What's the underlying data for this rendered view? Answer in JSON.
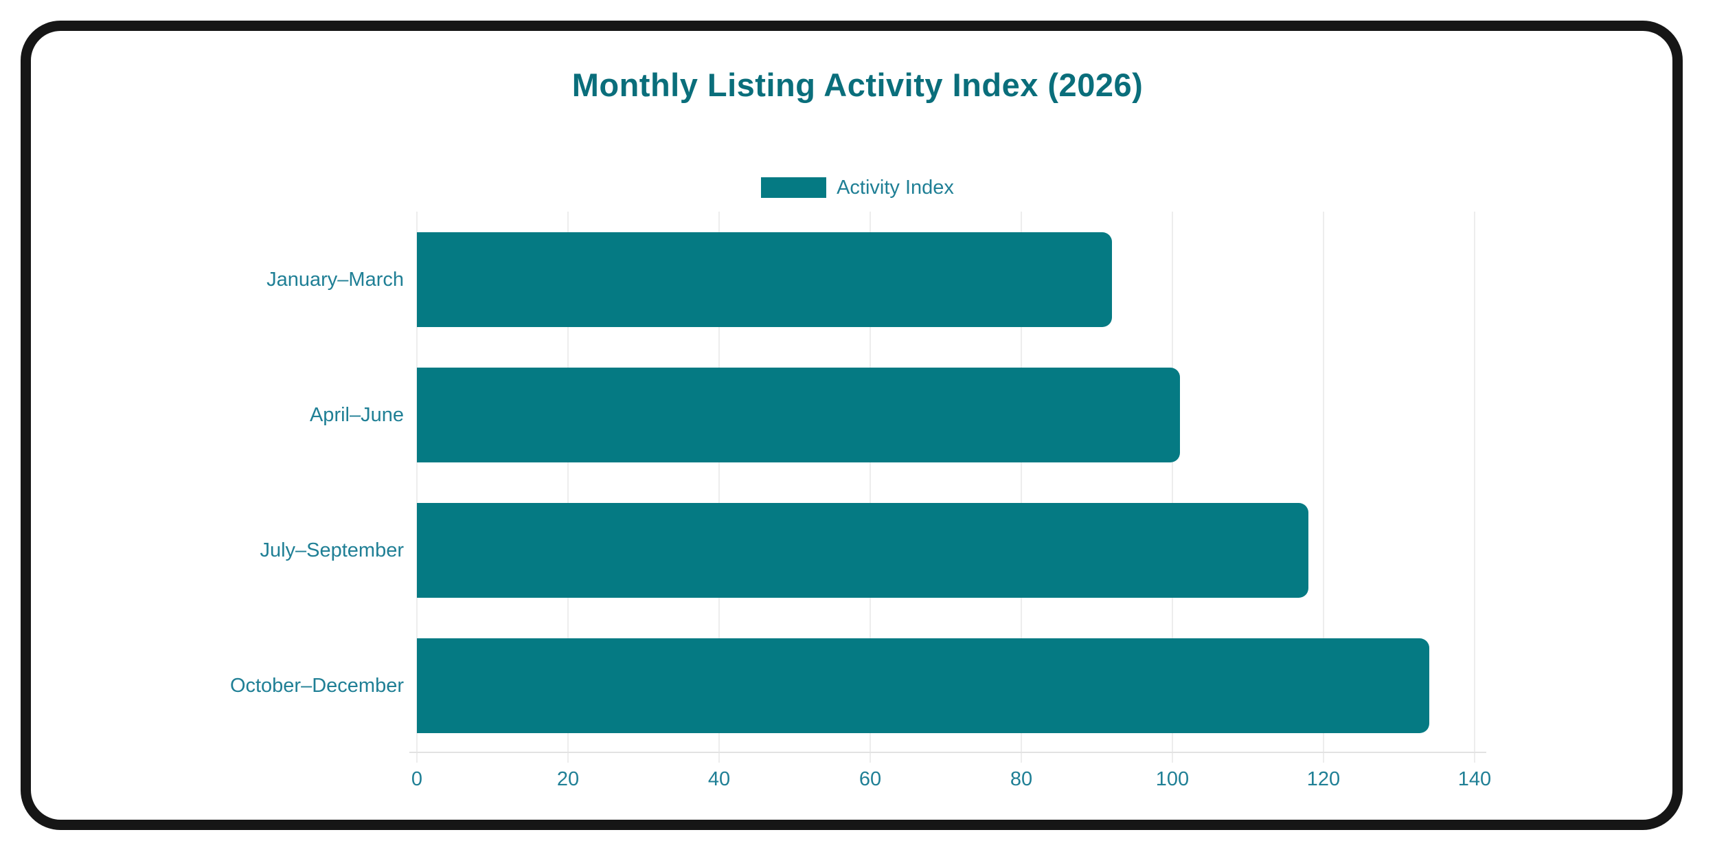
{
  "frame": {
    "border_color": "#161616"
  },
  "chart_data": {
    "type": "bar",
    "orientation": "horizontal",
    "title": "Monthly Listing Activity Index (2026)",
    "legend": {
      "label": "Activity Index",
      "position": "top"
    },
    "categories": [
      "January–March",
      "April–June",
      "July–September",
      "October–December"
    ],
    "series": [
      {
        "name": "Activity Index",
        "values": [
          92,
          101,
          118,
          134
        ]
      }
    ],
    "xlabel": "",
    "ylabel": "",
    "xlim": [
      0,
      140
    ],
    "xticks": [
      0,
      20,
      40,
      60,
      80,
      100,
      120,
      140
    ],
    "grid": true,
    "colors": {
      "bar": "#057a83",
      "title": "#0a6e7b",
      "axis_text": "#1f7f95",
      "grid_line": "#ededed",
      "axis_line": "#e2e2e2",
      "background": "#ffffff"
    }
  }
}
